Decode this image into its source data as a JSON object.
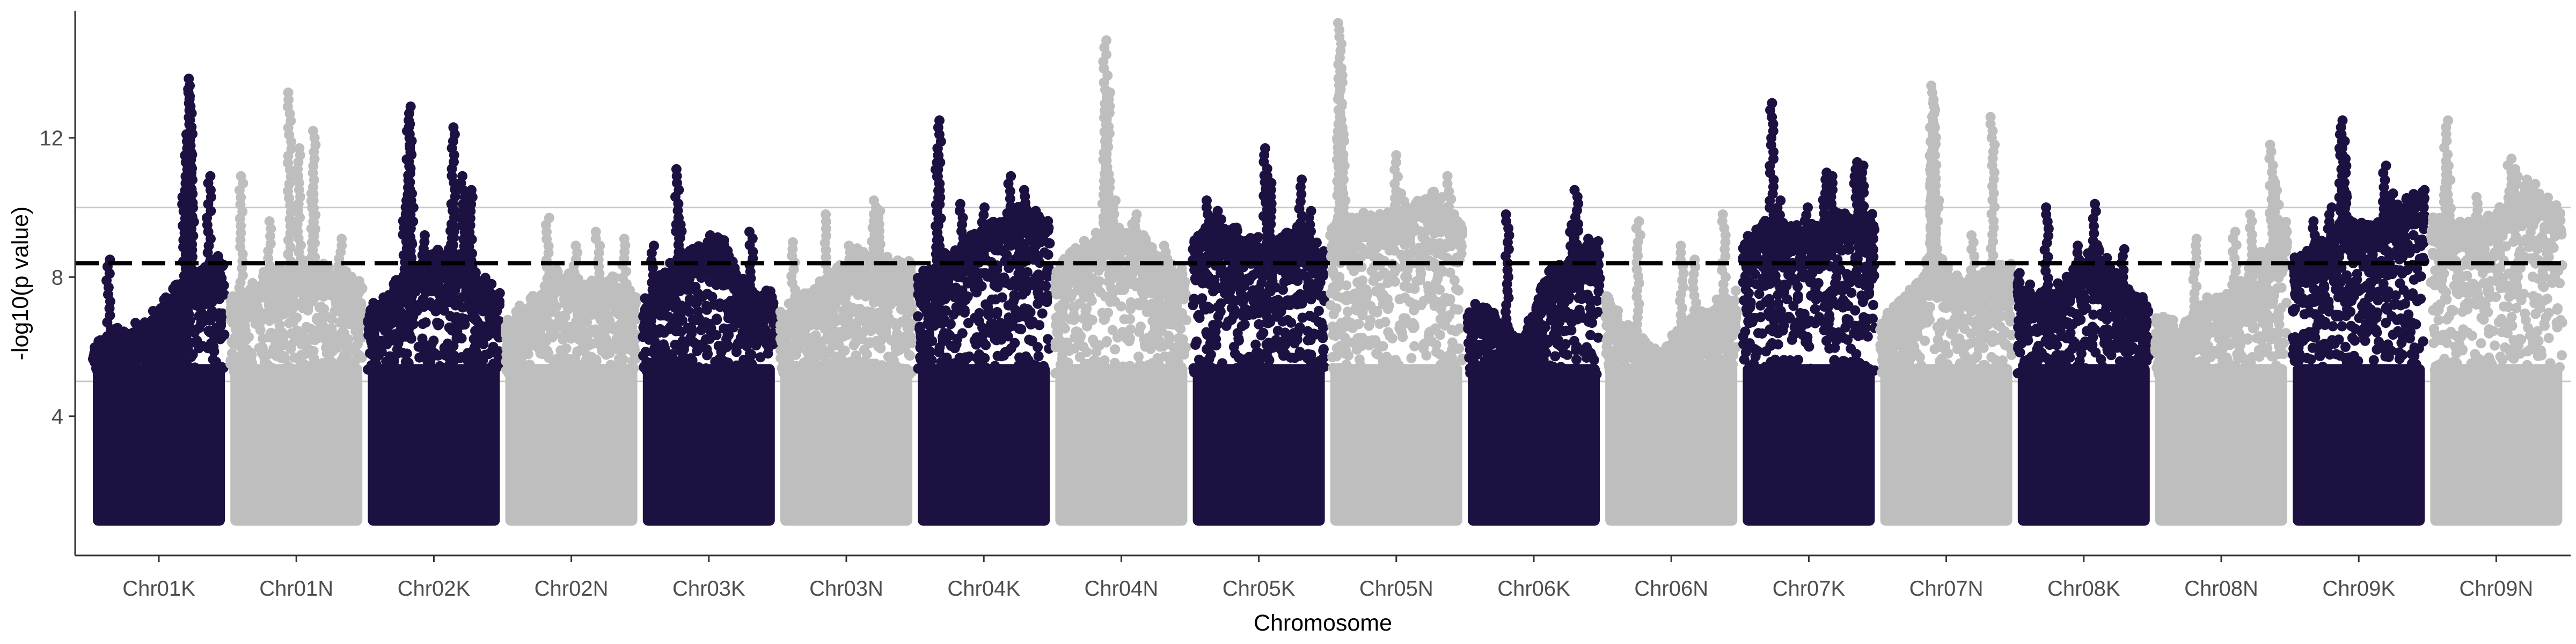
{
  "chart_data": {
    "type": "scatter",
    "title": "",
    "xlabel": "Chromosome",
    "ylabel": "-log10(p value)",
    "ylim": [
      0,
      15.5
    ],
    "y_ticks": [
      4,
      8,
      12
    ],
    "grid": false,
    "reference_lines": {
      "dashed": 8.4,
      "solid": [
        5.0,
        10.0
      ]
    },
    "point_floor": 1.0,
    "colors": {
      "dark": "#1d1142",
      "light": "#bebebe",
      "dashed_line": "#000000",
      "ref_line": "#c8c8c8",
      "axis": "#333333"
    },
    "categories": [
      "Chr01K",
      "Chr01N",
      "Chr02K",
      "Chr02N",
      "Chr03K",
      "Chr03N",
      "Chr04K",
      "Chr04N",
      "Chr05K",
      "Chr05N",
      "Chr06K",
      "Chr06N",
      "Chr07K",
      "Chr07N",
      "Chr08K",
      "Chr08N",
      "Chr09K",
      "Chr09N"
    ],
    "series": [
      {
        "category": "Chr01K",
        "color": "dark",
        "bulk_top": [
          5.8,
          6.3,
          6.5,
          7.4,
          7.9,
          8.4
        ],
        "peaks": [
          [
            0.12,
            8.5
          ],
          [
            0.58,
            7.2
          ],
          [
            0.72,
            11.9
          ],
          [
            0.74,
            13.7
          ],
          [
            0.73,
            13.4
          ],
          [
            0.71,
            12.1
          ],
          [
            0.75,
            11.6
          ],
          [
            0.69,
            10.3
          ],
          [
            0.88,
            10.9
          ],
          [
            0.95,
            8.6
          ]
        ]
      },
      {
        "category": "Chr01N",
        "color": "light",
        "bulk_top": [
          7.2,
          7.8,
          8.0,
          8.2,
          8.0,
          7.7
        ],
        "peaks": [
          [
            0.08,
            10.9
          ],
          [
            0.45,
            13.3
          ],
          [
            0.52,
            11.7
          ],
          [
            0.63,
            12.2
          ],
          [
            0.62,
            10.4
          ],
          [
            0.64,
            9.8
          ],
          [
            0.83,
            9.1
          ],
          [
            0.3,
            9.6
          ]
        ]
      },
      {
        "category": "Chr02K",
        "color": "dark",
        "bulk_top": [
          6.8,
          7.6,
          8.2,
          8.7,
          8.0,
          7.3
        ],
        "peaks": [
          [
            0.32,
            12.9
          ],
          [
            0.31,
            12.4
          ],
          [
            0.28,
            10.2
          ],
          [
            0.33,
            10.4
          ],
          [
            0.65,
            12.3
          ],
          [
            0.64,
            10.1
          ],
          [
            0.78,
            10.5
          ],
          [
            0.72,
            10.9
          ],
          [
            0.42,
            9.2
          ]
        ]
      },
      {
        "category": "Chr02N",
        "color": "light",
        "bulk_top": [
          6.5,
          7.2,
          8.0,
          7.6,
          7.8,
          7.4
        ],
        "peaks": [
          [
            0.32,
            9.7
          ],
          [
            0.53,
            8.9
          ],
          [
            0.7,
            9.3
          ],
          [
            0.9,
            9.1
          ]
        ]
      },
      {
        "category": "Chr03K",
        "color": "dark",
        "bulk_top": [
          7.0,
          8.2,
          8.6,
          8.9,
          7.4,
          7.3
        ],
        "peaks": [
          [
            0.26,
            11.1
          ],
          [
            0.28,
            9.7
          ],
          [
            0.5,
            9.2
          ],
          [
            0.6,
            8.6
          ],
          [
            0.82,
            9.3
          ],
          [
            0.07,
            8.9
          ]
        ]
      },
      {
        "category": "Chr03N",
        "color": "light",
        "bulk_top": [
          6.8,
          7.3,
          7.9,
          8.6,
          8.3,
          8.2
        ],
        "peaks": [
          [
            0.1,
            9.0
          ],
          [
            0.35,
            9.8
          ],
          [
            0.71,
            10.2
          ],
          [
            0.75,
            9.9
          ],
          [
            0.52,
            8.9
          ]
        ]
      },
      {
        "category": "Chr04K",
        "color": "dark",
        "bulk_top": [
          7.8,
          8.4,
          8.9,
          9.4,
          9.8,
          9.4
        ],
        "peaks": [
          [
            0.15,
            11.7
          ],
          [
            0.16,
            12.5
          ],
          [
            0.33,
            10.1
          ],
          [
            0.7,
            10.9
          ],
          [
            0.82,
            10.5
          ],
          [
            0.9,
            9.9
          ],
          [
            0.5,
            10.0
          ]
        ]
      },
      {
        "category": "Chr04N",
        "color": "light",
        "bulk_top": [
          8.0,
          8.7,
          9.2,
          9.3,
          8.2,
          7.9
        ],
        "peaks": [
          [
            0.38,
            14.8
          ],
          [
            0.4,
            13.3
          ],
          [
            0.39,
            11.9
          ],
          [
            0.37,
            10.9
          ],
          [
            0.45,
            10.2
          ],
          [
            0.6,
            9.8
          ],
          [
            0.83,
            8.9
          ]
        ]
      },
      {
        "category": "Chr05K",
        "color": "dark",
        "bulk_top": [
          8.9,
          9.4,
          9.0,
          8.7,
          9.2,
          8.5
        ],
        "peaks": [
          [
            0.12,
            10.2
          ],
          [
            0.18,
            9.9
          ],
          [
            0.55,
            11.7
          ],
          [
            0.58,
            10.9
          ],
          [
            0.82,
            10.8
          ],
          [
            0.88,
            9.9
          ],
          [
            0.3,
            9.3
          ]
        ]
      },
      {
        "category": "Chr05N",
        "color": "light",
        "bulk_top": [
          9.2,
          9.6,
          9.5,
          9.8,
          10.2,
          9.4
        ],
        "peaks": [
          [
            0.07,
            15.3
          ],
          [
            0.08,
            14.0
          ],
          [
            0.06,
            12.8
          ],
          [
            0.09,
            12.3
          ],
          [
            0.1,
            11.2
          ],
          [
            0.5,
            11.5
          ],
          [
            0.55,
            10.4
          ],
          [
            0.9,
            10.9
          ]
        ]
      },
      {
        "category": "Chr06K",
        "color": "dark",
        "bulk_top": [
          7.0,
          6.8,
          6.0,
          7.9,
          8.3,
          8.9
        ],
        "peaks": [
          [
            0.3,
            9.8
          ],
          [
            0.82,
            10.5
          ],
          [
            0.79,
            9.5
          ],
          [
            0.92,
            9.1
          ]
        ]
      },
      {
        "category": "Chr06N",
        "color": "light",
        "bulk_top": [
          7.3,
          6.2,
          5.6,
          6.4,
          7.0,
          7.4
        ],
        "peaks": [
          [
            0.25,
            9.6
          ],
          [
            0.58,
            8.9
          ],
          [
            0.68,
            8.5
          ],
          [
            0.9,
            9.8
          ]
        ]
      },
      {
        "category": "Chr07K",
        "color": "dark",
        "bulk_top": [
          8.9,
          9.4,
          9.3,
          9.4,
          9.7,
          9.6
        ],
        "peaks": [
          [
            0.22,
            13.0
          ],
          [
            0.27,
            10.2
          ],
          [
            0.62,
            11.0
          ],
          [
            0.68,
            10.9
          ],
          [
            0.86,
            11.3
          ],
          [
            0.9,
            11.2
          ],
          [
            0.48,
            10.0
          ]
        ]
      },
      {
        "category": "Chr07N",
        "color": "light",
        "bulk_top": [
          6.5,
          7.2,
          8.5,
          7.7,
          7.9,
          8.4
        ],
        "peaks": [
          [
            0.4,
            13.5
          ],
          [
            0.41,
            13.0
          ],
          [
            0.39,
            12.3
          ],
          [
            0.38,
            11.6
          ],
          [
            0.42,
            10.8
          ],
          [
            0.43,
            10.2
          ],
          [
            0.85,
            12.6
          ],
          [
            0.7,
            9.2
          ]
        ]
      },
      {
        "category": "Chr08K",
        "color": "dark",
        "bulk_top": [
          7.9,
          7.3,
          7.9,
          8.7,
          7.6,
          7.0
        ],
        "peaks": [
          [
            0.22,
            10.0
          ],
          [
            0.58,
            10.1
          ],
          [
            0.45,
            8.9
          ],
          [
            0.8,
            8.8
          ]
        ]
      },
      {
        "category": "Chr08N",
        "color": "light",
        "bulk_top": [
          6.8,
          6.3,
          7.2,
          7.4,
          8.5,
          9.4
        ],
        "peaks": [
          [
            0.3,
            9.1
          ],
          [
            0.6,
            9.3
          ],
          [
            0.88,
            11.8
          ],
          [
            0.92,
            10.7
          ],
          [
            0.72,
            9.8
          ]
        ]
      },
      {
        "category": "Chr09K",
        "color": "dark",
        "bulk_top": [
          8.3,
          8.7,
          9.4,
          9.2,
          9.9,
          10.3
        ],
        "peaks": [
          [
            0.38,
            12.5
          ],
          [
            0.37,
            12.1
          ],
          [
            0.39,
            11.4
          ],
          [
            0.36,
            10.7
          ],
          [
            0.4,
            10.3
          ],
          [
            0.7,
            11.2
          ],
          [
            0.75,
            10.4
          ],
          [
            0.16,
            9.6
          ],
          [
            0.28,
            10.0
          ]
        ]
      },
      {
        "category": "Chr09N",
        "color": "light",
        "bulk_top": [
          9.5,
          9.3,
          9.4,
          9.9,
          10.4,
          9.8
        ],
        "peaks": [
          [
            0.12,
            12.5
          ],
          [
            0.14,
            11.2
          ],
          [
            0.6,
            11.4
          ],
          [
            0.65,
            11.1
          ],
          [
            0.72,
            10.8
          ],
          [
            0.35,
            10.3
          ]
        ]
      }
    ]
  }
}
